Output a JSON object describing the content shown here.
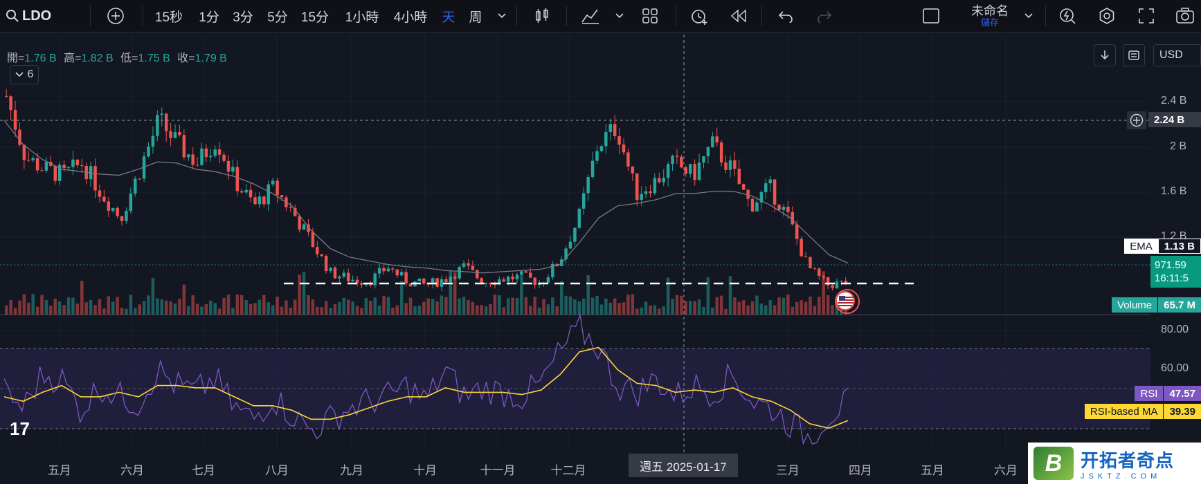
{
  "toolbar": {
    "symbol": "LDO",
    "intervals": [
      "15秒",
      "1分",
      "3分",
      "5分",
      "15分",
      "1小時",
      "4小時",
      "天",
      "周"
    ],
    "active_interval": "天",
    "layout_name": "未命名",
    "save_label": "儲存"
  },
  "ohlc": {
    "open_label": "開=",
    "open": "1.76 B",
    "high_label": "高=",
    "high": "1.82 B",
    "low_label": "低=",
    "low": "1.75 B",
    "close_label": "收=",
    "close": "1.79 B"
  },
  "indicators_collapsed_count": "6",
  "currency": "USD",
  "price_axis": [
    "2.4 B",
    "2 B",
    "1.6 B",
    "1.2 B"
  ],
  "rsi_axis": [
    "80.00",
    "60.00"
  ],
  "tags": {
    "crosshair_price": "2.24 B",
    "ema_label": "EMA",
    "ema_value": "1.13 B",
    "last_price": "971.59",
    "countdown": "16:11:5",
    "volume_label": "Volume",
    "volume_value": "65.7 M",
    "rsi_label": "RSI",
    "rsi_value": "47.57",
    "rsi_ma_label": "RSI-based MA",
    "rsi_ma_value": "39.39"
  },
  "time_axis": [
    "五月",
    "六月",
    "七月",
    "八月",
    "九月",
    "十月",
    "十一月",
    "十二月",
    "三月",
    "四月",
    "五月",
    "六月"
  ],
  "crosshair_time": "週五 2025-01-17",
  "watermark": {
    "logo_letter": "B",
    "name": "开拓者奇点",
    "url": "JSKTZ.COM"
  },
  "colors": {
    "up": "#26a69a",
    "down": "#ef5350",
    "ema": "#787b86",
    "rsi": "#7e57c2",
    "rsi_ma": "#fdd835",
    "accent": "#2962ff"
  },
  "chart_data": {
    "type": "candlestick",
    "close_series_approx": [
      2.5,
      2.0,
      1.9,
      1.85,
      1.95,
      1.7,
      1.5,
      1.9,
      2.3,
      2.1,
      1.95,
      2.15,
      1.8,
      1.6,
      1.75,
      1.55,
      1.3,
      1.05,
      1.0,
      0.98,
      1.1,
      0.98,
      0.95,
      1.0,
      1.1,
      0.98,
      1.0,
      1.02,
      0.97,
      1.15,
      1.5,
      2.1,
      2.25,
      1.7,
      1.8,
      1.95,
      1.85,
      2.1,
      1.9,
      1.6,
      1.75,
      1.5,
      1.1,
      0.95,
      0.97
    ],
    "ema_series_approx": [
      2.3,
      2.1,
      1.98,
      1.9,
      1.88,
      1.86,
      1.85,
      1.9,
      1.96,
      1.95,
      1.9,
      1.88,
      1.84,
      1.78,
      1.7,
      1.6,
      1.4,
      1.25,
      1.18,
      1.15,
      1.12,
      1.1,
      1.09,
      1.07,
      1.06,
      1.05,
      1.06,
      1.07,
      1.08,
      1.12,
      1.3,
      1.5,
      1.6,
      1.62,
      1.65,
      1.7,
      1.7,
      1.72,
      1.72,
      1.68,
      1.6,
      1.5,
      1.35,
      1.2,
      1.13
    ],
    "rsi_series_approx": [
      52,
      45,
      60,
      58,
      44,
      55,
      50,
      47,
      62,
      55,
      52,
      58,
      45,
      40,
      50,
      42,
      35,
      40,
      45,
      48,
      50,
      55,
      48,
      62,
      50,
      54,
      52,
      50,
      56,
      70,
      80,
      72,
      55,
      52,
      58,
      50,
      55,
      52,
      60,
      48,
      45,
      38,
      32,
      42,
      47.57
    ],
    "rsi_ma_series_approx": [
      50,
      48,
      52,
      55,
      50,
      50,
      52,
      50,
      55,
      55,
      54,
      54,
      50,
      46,
      46,
      44,
      40,
      40,
      42,
      45,
      48,
      50,
      50,
      54,
      52,
      52,
      52,
      51,
      53,
      60,
      70,
      72,
      62,
      56,
      55,
      52,
      53,
      52,
      54,
      50,
      48,
      44,
      38,
      36,
      39.39
    ],
    "support_level_approx": 0.9,
    "ylabel": ""
  }
}
